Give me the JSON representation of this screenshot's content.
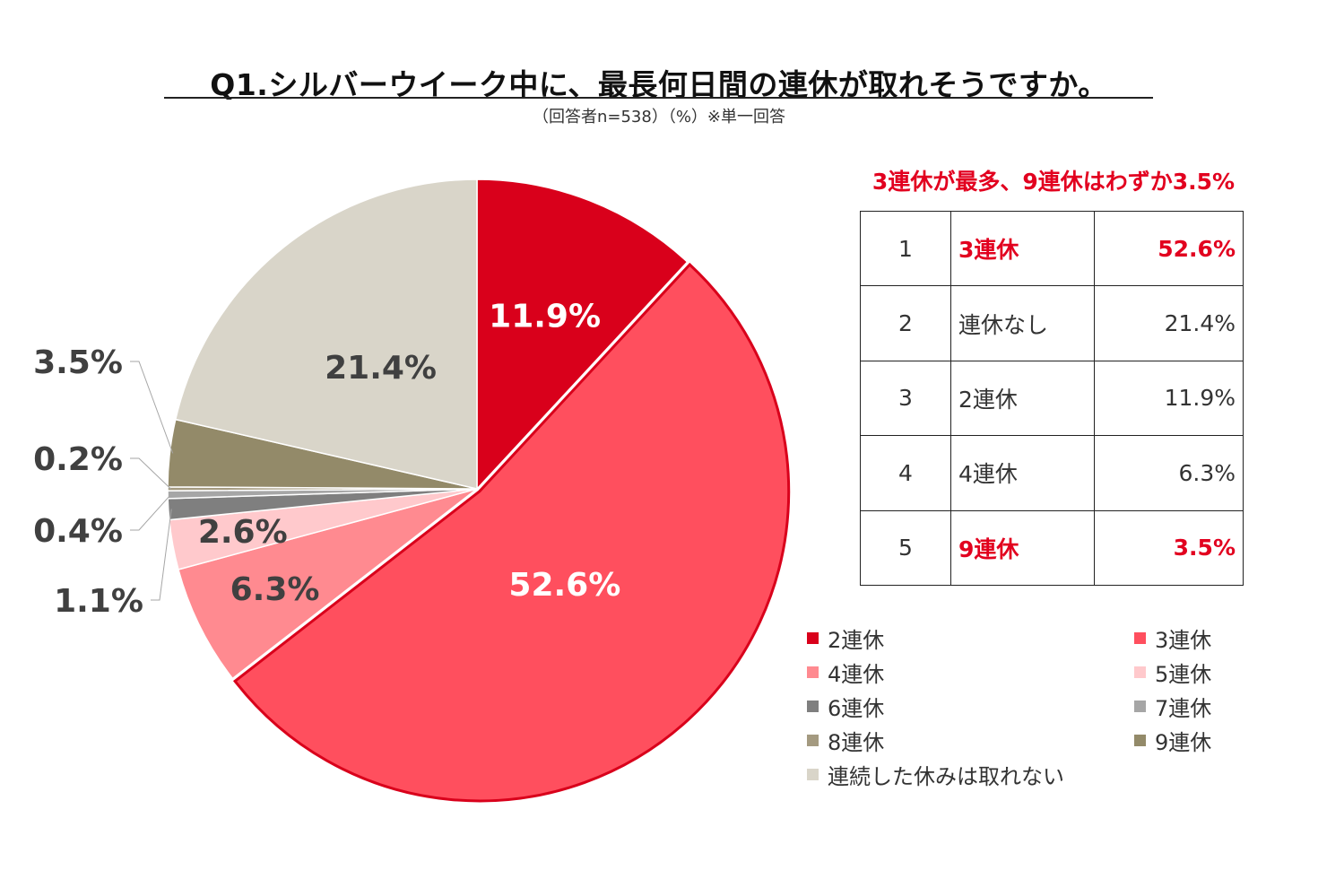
{
  "title": "Q1.シルバーウイーク中に、最長何日間の連休が取れそうですか。",
  "subtitle": "（回答者n=538）（%）※単一回答",
  "highlight": "3連休が最多、9連休はわずか3.5%",
  "ranking": [
    {
      "rank": "1",
      "name": "3連休",
      "pct": "52.6%",
      "hot": true
    },
    {
      "rank": "2",
      "name": "連休なし",
      "pct": "21.4%",
      "hot": false
    },
    {
      "rank": "3",
      "name": "2連休",
      "pct": "11.9%",
      "hot": false
    },
    {
      "rank": "4",
      "name": "4連休",
      "pct": "6.3%",
      "hot": false
    },
    {
      "rank": "5",
      "name": "9連休",
      "pct": "3.5%",
      "hot": true
    }
  ],
  "legend": [
    {
      "label": "2連休",
      "color": "#d9001b"
    },
    {
      "label": "3連休",
      "color": "#ff4f5e"
    },
    {
      "label": "4連休",
      "color": "#ff8a90"
    },
    {
      "label": "5連休",
      "color": "#ffc9cc"
    },
    {
      "label": "6連休",
      "color": "#7f7f7f"
    },
    {
      "label": "7連休",
      "color": "#a6a6a6"
    },
    {
      "label": "8連休",
      "color": "#a49a80"
    },
    {
      "label": "9連休",
      "color": "#938a69"
    },
    {
      "label": "連続した休みは取れない",
      "color": "#d9d5c9"
    }
  ],
  "chart_data": {
    "type": "pie",
    "title": "Q1.シルバーウイーク中に、最長何日間の連休が取れそうですか。",
    "unit": "%",
    "slices": [
      {
        "name": "2連休",
        "value": 11.9,
        "label": "11.9%",
        "color": "#d9001b"
      },
      {
        "name": "3連休",
        "value": 52.6,
        "label": "52.6%",
        "color": "#ff4f5e"
      },
      {
        "name": "4連休",
        "value": 6.3,
        "label": "6.3%",
        "color": "#ff8a90"
      },
      {
        "name": "5連休",
        "value": 2.6,
        "label": "2.6%",
        "color": "#ffc9cc"
      },
      {
        "name": "6連休",
        "value": 1.1,
        "label": "1.1%",
        "color": "#7f7f7f"
      },
      {
        "name": "7連休",
        "value": 0.4,
        "label": "0.4%",
        "color": "#a6a6a6"
      },
      {
        "name": "8連休",
        "value": 0.2,
        "label": "0.2%",
        "color": "#a49a80"
      },
      {
        "name": "9連休",
        "value": 3.5,
        "label": "3.5%",
        "color": "#938a69"
      },
      {
        "name": "連続した休みは取れない",
        "value": 21.4,
        "label": "21.4%",
        "color": "#d9d5c9"
      }
    ]
  }
}
